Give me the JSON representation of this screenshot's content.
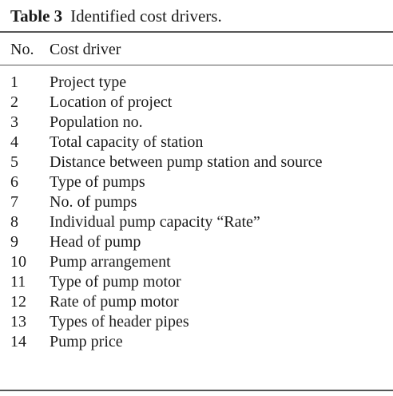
{
  "caption": {
    "label": "Table 3",
    "text": "Identified cost drivers."
  },
  "header": {
    "no": "No.",
    "driver": "Cost driver"
  },
  "rows": [
    {
      "no": "1",
      "driver": "Project type"
    },
    {
      "no": "2",
      "driver": "Location of project"
    },
    {
      "no": "3",
      "driver": "Population no."
    },
    {
      "no": "4",
      "driver": "Total capacity of station"
    },
    {
      "no": "5",
      "driver": "Distance between pump station and source"
    },
    {
      "no": "6",
      "driver": "Type of pumps"
    },
    {
      "no": "7",
      "driver": "No. of pumps"
    },
    {
      "no": "8",
      "driver": "Individual pump capacity “Rate”"
    },
    {
      "no": "9",
      "driver": "Head of pump"
    },
    {
      "no": "10",
      "driver": "Pump arrangement"
    },
    {
      "no": "11",
      "driver": "Type of pump motor"
    },
    {
      "no": "12",
      "driver": "Rate of pump motor"
    },
    {
      "no": "13",
      "driver": "Types of header pipes"
    },
    {
      "no": "14",
      "driver": "Pump price"
    }
  ]
}
